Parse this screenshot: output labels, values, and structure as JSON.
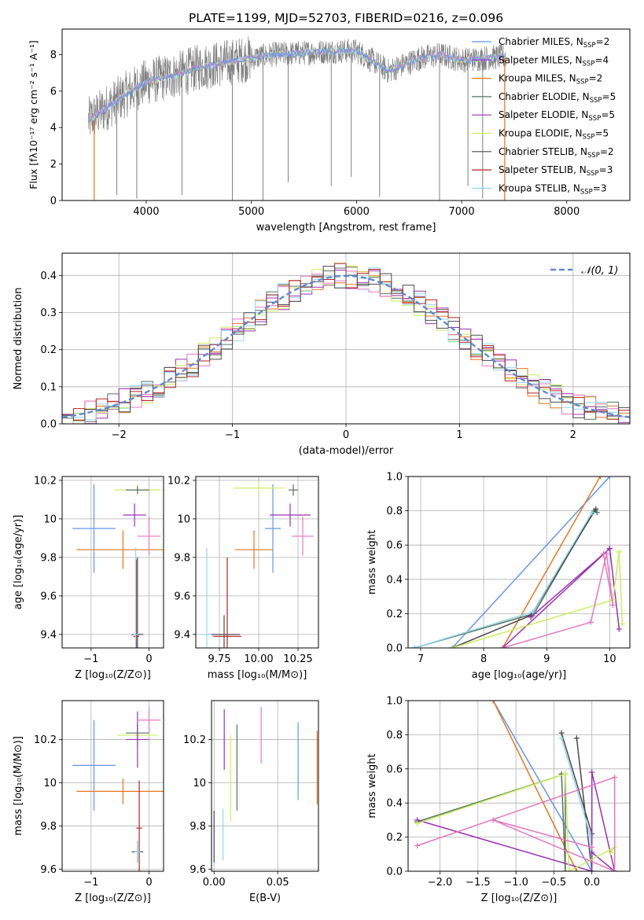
{
  "title": "PLATE=1199, MJD=52703, FIBERID=0216, z=0.096",
  "colors": {
    "chabrier_miles": "#6495ed",
    "salpeter_miles": "#9932cc",
    "kroupa_miles": "#e8761e",
    "chabrier_elodie": "#56735f",
    "salpeter_elodie": "#9b30b5",
    "kroupa_elodie": "#c9ef5a",
    "chabrier_stelib": "#4a4a4a",
    "salpeter_stelib": "#b22222",
    "kroupa_stelib": "#8fd7f0",
    "pink": "#e377c2",
    "data": "#808080",
    "normal": "#5b8bd6"
  },
  "legend_entries": [
    {
      "label": "Chabrier MILES, N",
      "sub": "SSP",
      "suffix": "=2",
      "color": "#6495ed"
    },
    {
      "label": "Salpeter MILES, N",
      "sub": "SSP",
      "suffix": "=4",
      "color": "#9932cc"
    },
    {
      "label": "Kroupa MILES, N",
      "sub": "SSP",
      "suffix": "=2",
      "color": "#e8761e"
    },
    {
      "label": "Chabrier ELODIE, N",
      "sub": "SSP",
      "suffix": "=5",
      "color": "#56735f"
    },
    {
      "label": "Salpeter ELODIE, N",
      "sub": "SSP",
      "suffix": "=5",
      "color": "#9b30b5"
    },
    {
      "label": "Kroupa ELODIE, N",
      "sub": "SSP",
      "suffix": "=5",
      "color": "#c9ef5a"
    },
    {
      "label": "Chabrier STELIB, N",
      "sub": "SSP",
      "suffix": "=2",
      "color": "#4a4a4a"
    },
    {
      "label": "Salpeter STELIB, N",
      "sub": "SSP",
      "suffix": "=3",
      "color": "#b22222"
    },
    {
      "label": "Kroupa STELIB, N",
      "sub": "SSP",
      "suffix": "=3",
      "color": "#8fd7f0"
    }
  ],
  "chart_data": [
    {
      "id": "spectrum",
      "type": "line",
      "xlabel": "wavelength [Angstrom, rest frame]",
      "ylabel": "Flux [fλ10⁻¹⁷ erg cm⁻² s⁻¹ A⁻¹]",
      "xlim": [
        3200,
        8600
      ],
      "ylim": [
        0,
        9.4
      ],
      "xticks": [
        4000,
        5000,
        6000,
        7000,
        8000
      ],
      "yticks": [
        0,
        2,
        4,
        6,
        8
      ],
      "model_curve": {
        "x": [
          3450,
          3600,
          3800,
          4000,
          4300,
          4500,
          4800,
          5000,
          5200,
          5500,
          5800,
          6000,
          6200,
          6300,
          6600,
          6800,
          7000,
          7200,
          7420
        ],
        "y": [
          4.4,
          5.0,
          5.8,
          6.5,
          6.9,
          7.3,
          7.6,
          7.8,
          8.0,
          8.1,
          8.2,
          8.2,
          7.5,
          7.1,
          7.8,
          8.0,
          7.7,
          7.8,
          7.9
        ]
      },
      "dips": [
        {
          "x": 3720,
          "y": 0.3
        },
        {
          "x": 3910,
          "y": 0.1
        },
        {
          "x": 4340,
          "y": 0.3
        },
        {
          "x": 4820,
          "y": 0.0
        },
        {
          "x": 5110,
          "y": 0.0
        },
        {
          "x": 5350,
          "y": 1.0
        },
        {
          "x": 5760,
          "y": 0.8
        },
        {
          "x": 5950,
          "y": 1.3
        },
        {
          "x": 6220,
          "y": 0.2
        },
        {
          "x": 6790,
          "y": 0.0
        },
        {
          "x": 7060,
          "y": 0.8
        },
        {
          "x": 7200,
          "y": 0.1
        },
        {
          "x": 7410,
          "y": 0.0
        }
      ]
    },
    {
      "id": "residuals",
      "type": "line",
      "xlabel": "(data-model)/error",
      "ylabel": "Normed distribution",
      "xlim": [
        -2.5,
        2.5
      ],
      "ylim": [
        0,
        0.46
      ],
      "xticks": [
        -2,
        -1,
        0,
        1,
        2
      ],
      "yticks": [
        0,
        0.1,
        0.2,
        0.3,
        0.4
      ],
      "legend": "𝒩(0, 1)",
      "gaussian": {
        "mean": 0,
        "sigma": 1
      }
    },
    {
      "id": "age-vs-z",
      "type": "scatter",
      "xlabel": "Z [log₁₀(Z/Z⊙)]",
      "ylabel": "age  [log₁₀(age/yr)]",
      "xlim": [
        -1.5,
        0.25
      ],
      "ylim": [
        9.33,
        10.22
      ],
      "xticks": [
        -1,
        0
      ],
      "yticks": [
        9.4,
        9.6,
        9.8,
        10.0,
        10.2
      ],
      "points": [
        {
          "x": -0.95,
          "y": 9.95,
          "xe": 0.37,
          "ye": 0.23,
          "c": "#6495ed"
        },
        {
          "x": -0.45,
          "y": 9.84,
          "xe": 0.8,
          "ye": 0.1,
          "c": "#e8761e"
        },
        {
          "x": -0.2,
          "y": 10.15,
          "xe": 0.4,
          "ye": 0.03,
          "c": "#c9ef5a"
        },
        {
          "x": -0.2,
          "y": 10.15,
          "xe": 0.2,
          "ye": 0.02,
          "c": "#56735f"
        },
        {
          "x": -0.25,
          "y": 10.02,
          "xe": 0.2,
          "ye": 0.06,
          "c": "#9b30b5"
        },
        {
          "x": 0.0,
          "y": 9.91,
          "xe": 0.2,
          "ye": 0.1,
          "c": "#e377c2"
        },
        {
          "x": -0.2,
          "y": 9.4,
          "xe": 0.1,
          "ye": 0.4,
          "c": "#4a4a4a"
        },
        {
          "x": -0.22,
          "y": 9.39,
          "xe": 0.05,
          "ye": 0.4,
          "c": "#b22222"
        },
        {
          "x": -0.23,
          "y": 9.4,
          "xe": 0.04,
          "ye": 0.45,
          "c": "#8fd7f0"
        }
      ]
    },
    {
      "id": "age-vs-mass",
      "type": "scatter",
      "xlabel": "mass [log₁₀(M/M⊙)]",
      "ylabel": "",
      "xlim": [
        9.6,
        10.38
      ],
      "ylim": [
        9.33,
        10.22
      ],
      "xticks": [
        9.75,
        10.0,
        10.25
      ],
      "xticklabels": [
        "9.75",
        "10.00",
        "10.25"
      ],
      "yticks": [
        9.4,
        9.6,
        9.8,
        10.0,
        10.2
      ],
      "points": [
        {
          "x": 10.09,
          "y": 9.95,
          "xe": 0.05,
          "ye": 0.23,
          "c": "#6495ed"
        },
        {
          "x": 9.97,
          "y": 9.84,
          "xe": 0.12,
          "ye": 0.1,
          "c": "#e8761e"
        },
        {
          "x": 10.0,
          "y": 10.16,
          "xe": 0.16,
          "ye": 0.03,
          "c": "#c9ef5a"
        },
        {
          "x": 10.22,
          "y": 10.15,
          "xe": 0.03,
          "ye": 0.03,
          "c": "#56735f"
        },
        {
          "x": 10.2,
          "y": 10.02,
          "xe": 0.13,
          "ye": 0.06,
          "c": "#9b30b5"
        },
        {
          "x": 10.28,
          "y": 9.91,
          "xe": 0.07,
          "ye": 0.1,
          "c": "#e377c2"
        },
        {
          "x": 9.78,
          "y": 9.4,
          "xe": 0.1,
          "ye": 0.1,
          "c": "#4a4a4a"
        },
        {
          "x": 9.8,
          "y": 9.39,
          "xe": 0.09,
          "ye": 0.41,
          "c": "#b22222"
        },
        {
          "x": 9.67,
          "y": 9.4,
          "xe": 0.03,
          "ye": 0.45,
          "c": "#8fd7f0"
        }
      ]
    },
    {
      "id": "weight-vs-age",
      "type": "line",
      "xlabel": "age  [log₁₀(age/yr)]",
      "ylabel": "mass weight",
      "xlim": [
        6.8,
        10.32
      ],
      "ylim": [
        0,
        1.0
      ],
      "xticks": [
        7,
        8,
        9,
        10
      ],
      "yticks": [
        0,
        0.2,
        0.4,
        0.6,
        0.8,
        1.0
      ],
      "series": [
        {
          "c": "#6495ed",
          "x": [
            7.5,
            10.0
          ],
          "y": [
            0.0,
            1.0
          ]
        },
        {
          "c": "#e8761e",
          "x": [
            8.3,
            9.85
          ],
          "y": [
            0.0,
            1.0
          ]
        },
        {
          "c": "#56735f",
          "x": [
            6.9,
            8.8,
            9.75,
            9.8
          ],
          "y": [
            0.0,
            0.2,
            0.8,
            0.79
          ]
        },
        {
          "c": "#4a4a4a",
          "x": [
            7.5,
            8.75,
            9.78
          ],
          "y": [
            0.0,
            0.19,
            0.81
          ]
        },
        {
          "c": "#8fd7f0",
          "x": [
            6.9,
            8.78,
            9.72
          ],
          "y": [
            0.0,
            0.21,
            0.79
          ]
        },
        {
          "c": "#9b30b5",
          "x": [
            8.3,
            10.0,
            10.15,
            10.0,
            8.75
          ],
          "y": [
            0.0,
            0.58,
            0.11,
            0.58,
            0.18
          ]
        },
        {
          "c": "#c9ef5a",
          "x": [
            7.5,
            10.05,
            10.15,
            10.2,
            10.15
          ],
          "y": [
            0.0,
            0.28,
            0.56,
            0.14,
            0.56
          ]
        },
        {
          "c": "#e377c2",
          "x": [
            8.3,
            9.7,
            9.95,
            10.05,
            9.9
          ],
          "y": [
            0.0,
            0.15,
            0.55,
            0.25,
            0.55
          ]
        }
      ]
    },
    {
      "id": "mass-vs-z",
      "type": "scatter",
      "xlabel": "Z [log₁₀(Z/Z⊙)]",
      "ylabel": "mass [log₁₀(M/M⊙)]",
      "xlim": [
        -1.5,
        0.25
      ],
      "ylim": [
        9.59,
        10.38
      ],
      "xticks": [
        -1,
        0
      ],
      "yticks": [
        9.6,
        9.8,
        10.0,
        10.2
      ],
      "points": [
        {
          "x": -0.95,
          "y": 10.08,
          "xe": 0.37,
          "ye": 0.21,
          "c": "#6495ed"
        },
        {
          "x": -0.45,
          "y": 9.96,
          "xe": 0.8,
          "ye": 0.06,
          "c": "#e8761e"
        },
        {
          "x": -0.2,
          "y": 10.22,
          "xe": 0.35,
          "ye": 0.05,
          "c": "#c9ef5a"
        },
        {
          "x": -0.2,
          "y": 10.23,
          "xe": 0.2,
          "ye": 0.04,
          "c": "#56735f"
        },
        {
          "x": -0.2,
          "y": 10.2,
          "xe": 0.2,
          "ye": 0.13,
          "c": "#9b30b5"
        },
        {
          "x": 0.0,
          "y": 10.29,
          "xe": 0.2,
          "ye": 0.06,
          "c": "#e377c2"
        },
        {
          "x": -0.2,
          "y": 9.68,
          "xe": 0.1,
          "ye": 0.05,
          "c": "#4a4a4a"
        },
        {
          "x": -0.17,
          "y": 9.79,
          "xe": 0.05,
          "ye": 0.22,
          "c": "#b22222"
        },
        {
          "x": -0.2,
          "y": 9.68,
          "xe": 0.05,
          "ye": 0.05,
          "c": "#8fd7f0"
        }
      ]
    },
    {
      "id": "mass-vs-ebv",
      "type": "scatter",
      "xlabel": "E(B-V)",
      "ylabel": "",
      "xlim": [
        -0.002,
        0.082
      ],
      "ylim": [
        9.59,
        10.38
      ],
      "xticks": [
        0.0,
        0.05
      ],
      "xticklabels": [
        "0.00",
        "0.05"
      ],
      "yticks": [
        9.6,
        9.8,
        10.0,
        10.2
      ],
      "points": [
        {
          "x": 0.066,
          "y": 10.1,
          "xe": 0,
          "ye": 0.18,
          "c": "#6495ed"
        },
        {
          "x": 0.081,
          "y": 10.07,
          "xe": 0,
          "ye": 0.17,
          "c": "#e8761e"
        },
        {
          "x": 0.037,
          "y": 10.22,
          "xe": 0,
          "ye": 0.13,
          "c": "#e377c2"
        },
        {
          "x": 0.008,
          "y": 10.2,
          "xe": 0,
          "ye": 0.14,
          "c": "#9b30b5"
        },
        {
          "x": 0.013,
          "y": 10.02,
          "xe": 0,
          "ye": 0.2,
          "c": "#c9ef5a"
        },
        {
          "x": 0.018,
          "y": 10.07,
          "xe": 0,
          "ye": 0.2,
          "c": "#56735f"
        },
        {
          "x": 0.0,
          "y": 9.75,
          "xe": 0,
          "ye": 0.12,
          "c": "#4a4a4a"
        },
        {
          "x": 0.007,
          "y": 9.76,
          "xe": 0,
          "ye": 0.12,
          "c": "#8fd7f0"
        }
      ]
    },
    {
      "id": "weight-vs-z",
      "type": "line",
      "xlabel": "Z [log₁₀(Z/Z⊙)]",
      "ylabel": "mass weight",
      "xlim": [
        -2.42,
        0.5
      ],
      "ylim": [
        0,
        1.0
      ],
      "xticks": [
        -2.0,
        -1.5,
        -1.0,
        -0.5,
        0.0
      ],
      "xticklabels": [
        "−2.0",
        "−1.5",
        "−1.0",
        "−0.5",
        "0.0"
      ],
      "yticks": [
        0,
        0.2,
        0.4,
        0.6,
        0.8,
        1.0
      ],
      "series": [
        {
          "c": "#6495ed",
          "x": [
            -1.3,
            0.0
          ],
          "y": [
            1.0,
            0.0
          ]
        },
        {
          "c": "#e8761e",
          "x": [
            -1.3,
            -0.2
          ],
          "y": [
            1.0,
            0.0
          ]
        },
        {
          "c": "#56735f",
          "x": [
            -2.3,
            -0.35,
            -0.35,
            -0.4
          ],
          "y": [
            0.29,
            0.57,
            0.0,
            0.57
          ]
        },
        {
          "c": "#4a4a4a",
          "x": [
            -0.4,
            0.0,
            0.0,
            -0.2
          ],
          "y": [
            0.81,
            0.22,
            0.0,
            0.78
          ]
        },
        {
          "c": "#8fd7f0",
          "x": [
            -0.4,
            -0.02,
            0.0
          ],
          "y": [
            0.78,
            0.21,
            0.0
          ]
        },
        {
          "c": "#9b30b5",
          "x": [
            -2.3,
            0.0,
            0.0,
            0.3,
            0.0
          ],
          "y": [
            0.3,
            0.0,
            0.58,
            0.0,
            0.11
          ]
        },
        {
          "c": "#c9ef5a",
          "x": [
            -2.3,
            -0.35,
            -0.3,
            0.3,
            0.25
          ],
          "y": [
            0.28,
            0.57,
            0.0,
            0.14,
            0.11
          ]
        },
        {
          "c": "#e377c2",
          "x": [
            -2.3,
            0.3,
            0.3,
            -1.3,
            0.0
          ],
          "y": [
            0.15,
            0.55,
            0.0,
            0.3,
            0.14
          ]
        }
      ]
    }
  ]
}
